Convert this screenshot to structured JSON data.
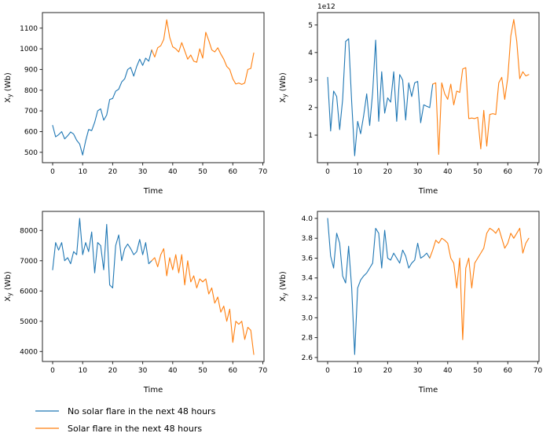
{
  "figure": {
    "background": "#ffffff",
    "spine_color": "#262626"
  },
  "legend": {
    "position": "bottom-left",
    "items": [
      {
        "label": "No solar flare in the next 48 hours",
        "color": "#1f77b4"
      },
      {
        "label": "Solar flare in the next 48 hours",
        "color": "#ff7f0e"
      }
    ]
  },
  "chart_data": [
    {
      "type": "line",
      "position": "top-left",
      "title": "",
      "xlabel": "Time",
      "ylabel": "X_y (Wb)",
      "offset_text": "",
      "xlim": [
        -3.4,
        70.4
      ],
      "ylim": [
        450,
        1175
      ],
      "xticks": [
        0,
        10,
        20,
        30,
        40,
        50,
        60,
        70
      ],
      "xtick_labels": [
        "0",
        "10",
        "20",
        "30",
        "40",
        "50",
        "60",
        "70"
      ],
      "yticks": [
        500,
        600,
        700,
        800,
        900,
        1000,
        1100
      ],
      "ytick_labels": [
        "500",
        "600",
        "700",
        "800",
        "900",
        "1000",
        "1100"
      ],
      "grid": false,
      "series": [
        {
          "name": "No solar flare in the next 48 hours",
          "color": "#1f77b4",
          "x": [
            0,
            1,
            2,
            3,
            4,
            5,
            6,
            7,
            8,
            9,
            10,
            11,
            12,
            13,
            14,
            15,
            16,
            17,
            18,
            19,
            20,
            21,
            22,
            23,
            24,
            25,
            26,
            27,
            28,
            29,
            30,
            31,
            32,
            33
          ],
          "y": [
            630,
            575,
            585,
            600,
            565,
            580,
            598,
            588,
            558,
            540,
            487,
            555,
            610,
            605,
            645,
            700,
            710,
            655,
            680,
            755,
            760,
            795,
            805,
            840,
            855,
            900,
            910,
            868,
            915,
            950,
            920,
            955,
            940,
            995
          ]
        },
        {
          "name": "Solar flare in the next 48 hours",
          "color": "#ff7f0e",
          "x": [
            33,
            34,
            35,
            36,
            37,
            38,
            39,
            40,
            41,
            42,
            43,
            44,
            45,
            46,
            47,
            48,
            49,
            50,
            51,
            52,
            53,
            54,
            55,
            56,
            57,
            58,
            59,
            60,
            61,
            62,
            63,
            64,
            65,
            66,
            67
          ],
          "y": [
            995,
            960,
            1005,
            1015,
            1045,
            1140,
            1055,
            1010,
            1000,
            985,
            1030,
            990,
            950,
            970,
            940,
            935,
            1000,
            955,
            1080,
            1040,
            995,
            985,
            1005,
            975,
            950,
            915,
            900,
            855,
            830,
            835,
            828,
            835,
            900,
            905,
            980
          ]
        }
      ]
    },
    {
      "type": "line",
      "position": "top-right",
      "title": "",
      "xlabel": "Time",
      "ylabel": "X_y (Wb)",
      "offset_text": "1e12",
      "xlim": [
        -3.4,
        70.4
      ],
      "ylim": [
        0.0,
        5.45
      ],
      "xticks": [
        0,
        10,
        20,
        30,
        40,
        50,
        60,
        70
      ],
      "xtick_labels": [
        "0",
        "10",
        "20",
        "30",
        "40",
        "50",
        "60",
        "70"
      ],
      "yticks": [
        1,
        2,
        3,
        4,
        5
      ],
      "ytick_labels": [
        "1",
        "2",
        "3",
        "4",
        "5"
      ],
      "grid": false,
      "series": [
        {
          "name": "No solar flare in the next 48 hours",
          "color": "#1f77b4",
          "x": [
            0,
            1,
            2,
            3,
            4,
            5,
            6,
            7,
            8,
            9,
            10,
            11,
            12,
            13,
            14,
            15,
            16,
            17,
            18,
            19,
            20,
            21,
            22,
            23,
            24,
            25,
            26,
            27,
            28,
            29,
            30,
            31,
            32,
            33,
            34,
            35
          ],
          "y": [
            3.1,
            1.15,
            2.6,
            2.4,
            1.2,
            2.3,
            4.4,
            4.5,
            2.2,
            0.25,
            1.5,
            1.05,
            1.7,
            2.5,
            1.35,
            2.55,
            4.45,
            1.5,
            3.3,
            1.8,
            2.35,
            2.2,
            3.3,
            1.5,
            3.2,
            3.0,
            1.55,
            2.9,
            2.4,
            2.9,
            2.95,
            1.45,
            2.1,
            2.05,
            2.0,
            2.85
          ]
        },
        {
          "name": "Solar flare in the next 48 hours",
          "color": "#ff7f0e",
          "x": [
            35,
            36,
            37,
            38,
            39,
            40,
            41,
            42,
            43,
            44,
            45,
            46,
            47,
            48,
            49,
            50,
            51,
            52,
            53,
            54,
            55,
            56,
            57,
            58,
            59,
            60,
            61,
            62,
            63,
            64,
            65,
            66,
            67
          ],
          "y": [
            2.85,
            2.9,
            0.3,
            2.9,
            2.5,
            2.3,
            2.85,
            2.1,
            2.6,
            2.55,
            3.4,
            3.45,
            1.6,
            1.62,
            1.6,
            1.65,
            0.5,
            1.9,
            0.6,
            1.75,
            1.78,
            1.75,
            2.9,
            3.1,
            2.3,
            3.1,
            4.6,
            5.2,
            4.4,
            3.05,
            3.3,
            3.15,
            3.2
          ]
        }
      ]
    },
    {
      "type": "line",
      "position": "bottom-left",
      "title": "",
      "xlabel": "Time",
      "ylabel": "X_y (Wb)",
      "offset_text": "",
      "xlim": [
        -3.4,
        70.4
      ],
      "ylim": [
        3670,
        8630
      ],
      "xticks": [
        0,
        10,
        20,
        30,
        40,
        50,
        60,
        70
      ],
      "xtick_labels": [
        "0",
        "10",
        "20",
        "30",
        "40",
        "50",
        "60",
        "70"
      ],
      "yticks": [
        4000,
        5000,
        6000,
        7000,
        8000
      ],
      "ytick_labels": [
        "4000",
        "5000",
        "6000",
        "7000",
        "8000"
      ],
      "grid": false,
      "series": [
        {
          "name": "No solar flare in the next 48 hours",
          "color": "#1f77b4",
          "x": [
            0,
            1,
            2,
            3,
            4,
            5,
            6,
            7,
            8,
            9,
            10,
            11,
            12,
            13,
            14,
            15,
            16,
            17,
            18,
            19,
            20,
            21,
            22,
            23,
            24,
            25,
            26,
            27,
            28,
            29,
            30,
            31,
            32,
            33
          ],
          "y": [
            6700,
            7600,
            7350,
            7600,
            7000,
            7100,
            6900,
            7300,
            7200,
            8400,
            7200,
            7600,
            7300,
            7950,
            6600,
            7600,
            7500,
            6700,
            8200,
            6200,
            6100,
            7500,
            7850,
            7000,
            7400,
            7550,
            7400,
            7200,
            7300,
            7700,
            7200,
            7600,
            6900,
            7000
          ]
        },
        {
          "name": "Solar flare in the next 48 hours",
          "color": "#ff7f0e",
          "x": [
            33,
            34,
            35,
            36,
            37,
            38,
            39,
            40,
            41,
            42,
            43,
            44,
            45,
            46,
            47,
            48,
            49,
            50,
            51,
            52,
            53,
            54,
            55,
            56,
            57,
            58,
            59,
            60,
            61,
            62,
            63,
            64,
            65,
            66,
            67
          ],
          "y": [
            7000,
            7100,
            6800,
            7200,
            7400,
            6500,
            7100,
            6700,
            7200,
            6600,
            7200,
            6200,
            7000,
            6300,
            6500,
            6100,
            6400,
            6300,
            6400,
            5900,
            6100,
            5600,
            5800,
            5300,
            5500,
            5000,
            5400,
            4300,
            5000,
            4900,
            5000,
            4400,
            4800,
            4700,
            3900
          ]
        }
      ]
    },
    {
      "type": "line",
      "position": "bottom-right",
      "title": "",
      "xlabel": "Time",
      "ylabel": "X_y (Wb)",
      "offset_text": "",
      "xlim": [
        -3.4,
        70.4
      ],
      "ylim": [
        2.56,
        4.07
      ],
      "xticks": [
        0,
        10,
        20,
        30,
        40,
        50,
        60,
        70
      ],
      "xtick_labels": [
        "0",
        "10",
        "20",
        "30",
        "40",
        "50",
        "60",
        "70"
      ],
      "yticks": [
        2.6,
        2.8,
        3.0,
        3.2,
        3.4,
        3.6,
        3.8,
        4.0
      ],
      "ytick_labels": [
        "2.6",
        "2.8",
        "3.0",
        "3.2",
        "3.4",
        "3.6",
        "3.8",
        "4.0"
      ],
      "grid": false,
      "series": [
        {
          "name": "No solar flare in the next 48 hours",
          "color": "#1f77b4",
          "x": [
            0,
            1,
            2,
            3,
            4,
            5,
            6,
            7,
            8,
            9,
            10,
            11,
            12,
            13,
            14,
            15,
            16,
            17,
            18,
            19,
            20,
            21,
            22,
            23,
            24,
            25,
            26,
            27,
            28,
            29,
            30,
            31,
            32,
            33,
            34
          ],
          "y": [
            4.0,
            3.62,
            3.5,
            3.85,
            3.75,
            3.42,
            3.35,
            3.72,
            3.3,
            2.63,
            3.3,
            3.38,
            3.42,
            3.45,
            3.5,
            3.55,
            3.9,
            3.85,
            3.5,
            3.88,
            3.6,
            3.58,
            3.65,
            3.6,
            3.55,
            3.68,
            3.62,
            3.5,
            3.55,
            3.58,
            3.75,
            3.6,
            3.62,
            3.65,
            3.6
          ]
        },
        {
          "name": "Solar flare in the next 48 hours",
          "color": "#ff7f0e",
          "x": [
            34,
            35,
            36,
            37,
            38,
            39,
            40,
            41,
            42,
            43,
            44,
            45,
            46,
            47,
            48,
            49,
            50,
            51,
            52,
            53,
            54,
            55,
            56,
            57,
            58,
            59,
            60,
            61,
            62,
            63,
            64,
            65,
            66,
            67
          ],
          "y": [
            3.6,
            3.68,
            3.78,
            3.75,
            3.8,
            3.78,
            3.75,
            3.6,
            3.55,
            3.3,
            3.6,
            2.78,
            3.5,
            3.6,
            3.3,
            3.55,
            3.6,
            3.65,
            3.7,
            3.85,
            3.9,
            3.88,
            3.85,
            3.9,
            3.8,
            3.7,
            3.75,
            3.85,
            3.8,
            3.85,
            3.9,
            3.65,
            3.75,
            3.8
          ]
        }
      ]
    }
  ]
}
